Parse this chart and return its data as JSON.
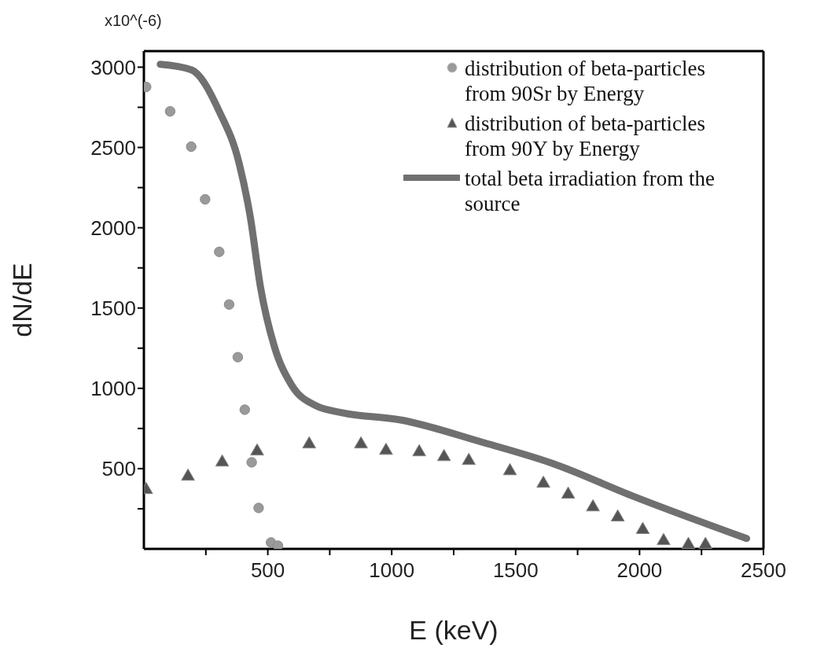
{
  "chart_data": {
    "type": "scatter",
    "xlabel": "E (keV)",
    "ylabel": "dN/dE",
    "annotations": [
      "x10^(-6)"
    ],
    "xlim": [
      0,
      2500
    ],
    "ylim": [
      0,
      3100
    ],
    "xticks": [
      {
        "value": 250,
        "label": null
      },
      500,
      {
        "value": 750,
        "label": null
      },
      1000,
      {
        "value": 1250,
        "label": null
      },
      1500,
      {
        "value": 1750,
        "label": null
      },
      2000,
      {
        "value": 2250,
        "label": null
      },
      2500
    ],
    "yticks": [
      {
        "value": 250,
        "label": null
      },
      500,
      {
        "value": 750,
        "label": null
      },
      1000,
      {
        "value": 1250,
        "label": null
      },
      1500,
      {
        "value": 1750,
        "label": null
      },
      2000,
      {
        "value": 2250,
        "label": null
      },
      2500,
      {
        "value": 2750,
        "label": null
      },
      3000
    ],
    "grid": false,
    "legend": "top right",
    "series": [
      {
        "name": "distribution of beta-particles from 90Sr by Energy",
        "marker": "circle",
        "color": "#9a9a9a",
        "x": [
          9,
          106,
          191,
          247,
          304,
          344,
          379,
          407,
          435,
          463,
          513,
          541
        ],
        "values": [
          2877,
          2725,
          2505,
          2177,
          1850,
          1522,
          1194,
          867,
          539,
          255,
          40,
          20
        ]
      },
      {
        "name": "distribution of beta-particles from 90Y by Energy",
        "marker": "triangle",
        "color": "#555555",
        "x": [
          9,
          178,
          316,
          457,
          667,
          876,
          977,
          1111,
          1211,
          1311,
          1477,
          1612,
          1712,
          1812,
          1912,
          2013,
          2097,
          2197,
          2266
        ],
        "values": [
          368,
          451,
          539,
          608,
          652,
          652,
          612,
          603,
          573,
          549,
          485,
          407,
          339,
          260,
          197,
          119,
          50,
          26,
          26
        ]
      },
      {
        "name": "total beta irradiation from the source",
        "type": "line",
        "color": "#707070",
        "x": [
          66,
          191,
          304,
          385,
          429,
          470,
          526,
          595,
          695,
          804,
          1036,
          1362,
          1646,
          1981,
          2432
        ],
        "values": [
          3018,
          2984,
          2725,
          2397,
          2070,
          1635,
          1263,
          1023,
          891,
          847,
          803,
          666,
          534,
          324,
          65
        ]
      }
    ]
  }
}
